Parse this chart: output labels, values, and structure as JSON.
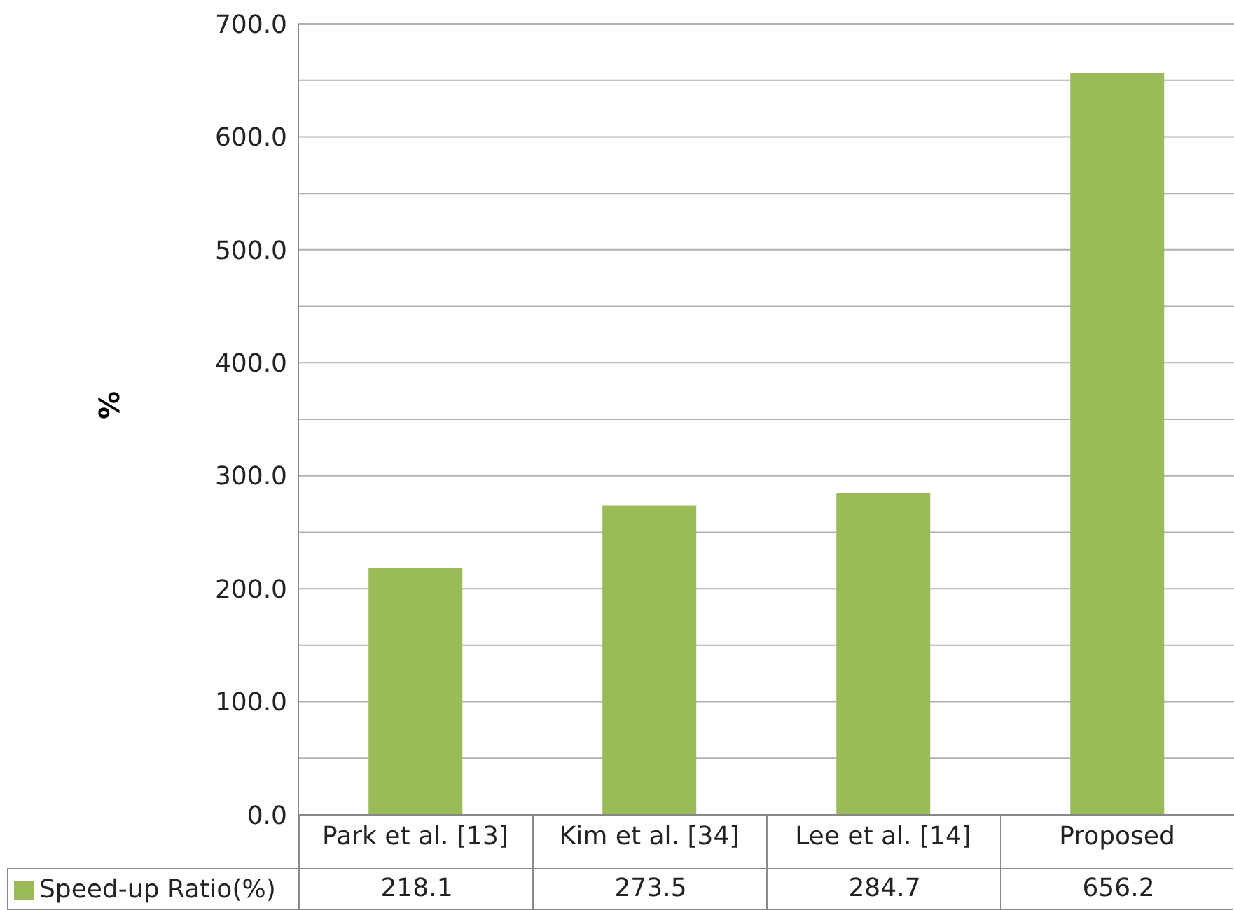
{
  "chart_data": {
    "type": "bar",
    "ylabel": "%",
    "categories": [
      "Park et al. [13]",
      "Kim et al. [34]",
      "Lee et al. [14]",
      "Proposed"
    ],
    "series": [
      {
        "name": "Speed-up Ratio(%)",
        "color": "#9bbb59",
        "values": [
          218.1,
          273.5,
          284.7,
          656.2
        ]
      }
    ],
    "ylim": [
      0,
      700
    ],
    "yticks": [
      {
        "value": 0,
        "label": "0.0"
      },
      {
        "value": 50,
        "label": null
      },
      {
        "value": 100,
        "label": "100.0"
      },
      {
        "value": 150,
        "label": null
      },
      {
        "value": 200,
        "label": "200.0"
      },
      {
        "value": 250,
        "label": null
      },
      {
        "value": 300,
        "label": "300.0"
      },
      {
        "value": 350,
        "label": null
      },
      {
        "value": 400,
        "label": "400.0"
      },
      {
        "value": 450,
        "label": null
      },
      {
        "value": 500,
        "label": "500.0"
      },
      {
        "value": 550,
        "label": null
      },
      {
        "value": 600,
        "label": "600.0"
      },
      {
        "value": 650,
        "label": null
      },
      {
        "value": 700,
        "label": "700.0"
      }
    ],
    "grid": "y",
    "legend": "bottom",
    "data_labels": true
  }
}
